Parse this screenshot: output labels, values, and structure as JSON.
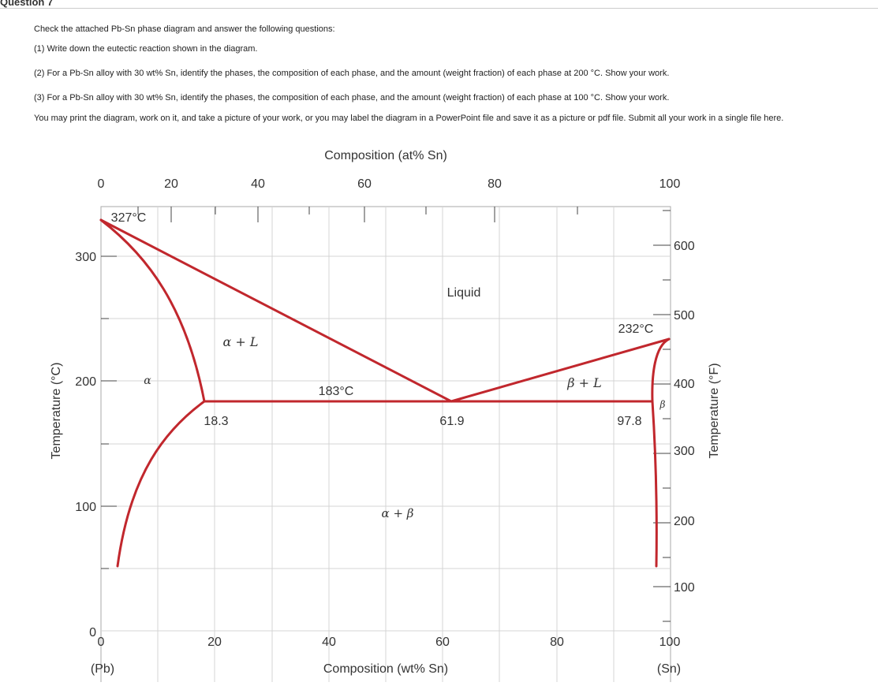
{
  "question": {
    "title": "Question 7",
    "intro": "Check the attached Pb-Sn phase diagram and answer the following questions:",
    "q1": "(1) Write down the eutectic reaction shown in the diagram.",
    "q2": "(2) For a Pb-Sn alloy with 30 wt% Sn, identify the phases, the composition of each phase, and the amount (weight fraction) of each phase at 200 °C. Show your work.",
    "q3": "(3) For a Pb-Sn alloy with 30 wt% Sn, identify the phases, the composition of each phase, and the amount (weight fraction) of each phase at 100 °C. Show your work.",
    "instructions": "You may print the diagram, work on it, and take a picture of your work, or you may label the diagram in a PowerPoint file and save it as a picture or pdf file. Submit all your work in a single file here."
  },
  "diagram": {
    "top_axis_title": "Composition (at% Sn)",
    "bottom_axis_title": "Composition (wt% Sn)",
    "left_axis_title": "Temperature (°C)",
    "right_axis_title": "Temperature (°F)",
    "top_ticks": [
      "0",
      "20",
      "40",
      "60",
      "80",
      "100"
    ],
    "bottom_ticks": [
      "0",
      "20",
      "40",
      "60",
      "80",
      "100"
    ],
    "left_ticks": [
      "0",
      "100",
      "200",
      "300"
    ],
    "right_ticks": [
      "100",
      "200",
      "300",
      "400",
      "500",
      "600"
    ],
    "end_left": "(Pb)",
    "end_right": "(Sn)",
    "phases": {
      "liquid": "Liquid",
      "alpha_liquid": "α + L",
      "beta_liquid": "β + L",
      "alpha_beta": "α + β",
      "alpha": "α",
      "beta": "β"
    },
    "points": {
      "pb_melt": "327°C",
      "sn_melt": "232°C",
      "eutectic_temp": "183°C",
      "alpha_max": "18.3",
      "eutectic_comp": "61.9",
      "beta_max": "97.8"
    },
    "line_color": "#c1272d"
  }
}
